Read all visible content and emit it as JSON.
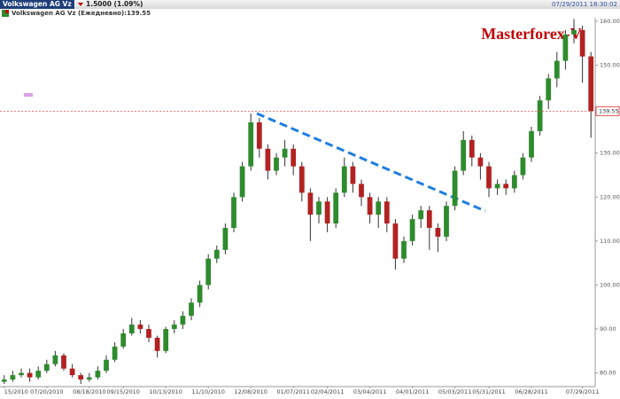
{
  "chart_data": {
    "type": "candlestick",
    "header": {
      "tab": "Volkswagen AG Vz (...",
      "change": "1.5000 (1.09%)",
      "timestamp": "07/29/2011 18:30:02"
    },
    "legend": "Volkswagen AG Vz (Ежедневно):139.55",
    "title": "Masterforex-V",
    "last_price": 139.55,
    "up_color": "#2e8b2e",
    "down_color": "#b22222",
    "ylim": [
      76.9,
      160.8
    ],
    "yticks": [
      {
        "value": 80,
        "label": "80.00"
      },
      {
        "value": 90,
        "label": "90.00"
      },
      {
        "value": 100,
        "label": "100.00"
      },
      {
        "value": 110,
        "label": "110.00"
      },
      {
        "value": 120,
        "label": "120.00"
      },
      {
        "value": 130,
        "label": "130.00"
      },
      {
        "value": 140,
        "label": "140.00"
      },
      {
        "value": 150,
        "label": "150.00"
      },
      {
        "value": 160,
        "label": "160.00"
      }
    ],
    "xticks": [
      {
        "value": 0,
        "label": "15/2010"
      },
      {
        "value": 5,
        "label": "07/20/2010"
      },
      {
        "value": 10,
        "label": "08/18/2010"
      },
      {
        "value": 14,
        "label": "09/15/2010"
      },
      {
        "value": 19,
        "label": "10/13/2010"
      },
      {
        "value": 24,
        "label": "11/10/2010"
      },
      {
        "value": 29,
        "label": "12/08/2010"
      },
      {
        "value": 34,
        "label": "01/07/2011"
      },
      {
        "value": 38,
        "label": "02/04/2011"
      },
      {
        "value": 43,
        "label": "03/04/2011"
      },
      {
        "value": 48,
        "label": "04/01/2011"
      },
      {
        "value": 53,
        "label": "05/03/2011"
      },
      {
        "value": 57,
        "label": "05/31/2011"
      },
      {
        "value": 62,
        "label": "06/28/2011"
      },
      {
        "value": 68,
        "label": "07/29/2011"
      }
    ],
    "open": [
      78,
      78.5,
      79.5,
      80,
      79,
      80.5,
      82,
      84,
      81,
      79.5,
      78.5,
      79,
      80.5,
      83,
      86,
      89,
      91,
      90,
      88,
      85,
      90,
      91,
      93,
      96,
      100,
      106,
      108,
      113,
      120,
      127,
      137,
      131,
      126,
      129,
      131,
      127,
      121,
      116,
      119,
      114,
      121,
      127,
      123,
      120,
      116,
      119,
      114,
      106,
      110,
      115,
      117,
      113,
      111,
      118,
      126,
      133,
      129,
      127,
      122,
      123,
      122,
      125,
      129,
      135,
      142,
      147,
      151,
      157,
      158,
      152
    ],
    "high": [
      79.5,
      80.5,
      81,
      81,
      81.5,
      83,
      85,
      84.5,
      82,
      80,
      80,
      81.5,
      84,
      87,
      90,
      92.5,
      92,
      91,
      88.5,
      90.5,
      92,
      94,
      97,
      101,
      107,
      109,
      114,
      121,
      128,
      139,
      138,
      132,
      130,
      133,
      132,
      128,
      122,
      120,
      120,
      122,
      129,
      128,
      124,
      121,
      120,
      120,
      115,
      111,
      116,
      118,
      118,
      114,
      119,
      127,
      135,
      134,
      130,
      128,
      124,
      124,
      126,
      130,
      136,
      143,
      148,
      153,
      158,
      160.5,
      159,
      153
    ],
    "low": [
      77.5,
      78,
      79,
      78,
      78.5,
      80,
      81.5,
      80.5,
      79,
      77.5,
      78,
      78.5,
      80,
      82.5,
      85.5,
      88.5,
      89,
      87,
      83.5,
      84.5,
      89,
      90,
      92,
      95,
      99,
      105,
      107,
      112,
      119,
      126,
      129,
      124,
      125,
      127,
      125,
      119,
      110,
      114,
      112,
      113,
      120,
      121,
      118,
      114,
      113,
      112,
      103.5,
      105,
      109,
      113,
      108,
      107.5,
      110,
      117,
      125,
      127,
      124,
      120,
      120.5,
      120.5,
      121,
      124,
      128,
      134,
      140,
      145,
      149,
      155,
      146,
      133.5
    ],
    "close": [
      78.5,
      79.5,
      80,
      79,
      80.5,
      82,
      84,
      81,
      79.5,
      78.5,
      79,
      80.5,
      83,
      86,
      89,
      91,
      90,
      88,
      85,
      90,
      91,
      93,
      96,
      100,
      106,
      108,
      113,
      120,
      127,
      137,
      131,
      126,
      129,
      131,
      127,
      121,
      116,
      119,
      114,
      121,
      127,
      123,
      120,
      116,
      119,
      114,
      106,
      110,
      115,
      117,
      113,
      111,
      118,
      126,
      133,
      129,
      127,
      122,
      123,
      122,
      125,
      129,
      135,
      142,
      147,
      151,
      157,
      158,
      152,
      139.55
    ]
  }
}
